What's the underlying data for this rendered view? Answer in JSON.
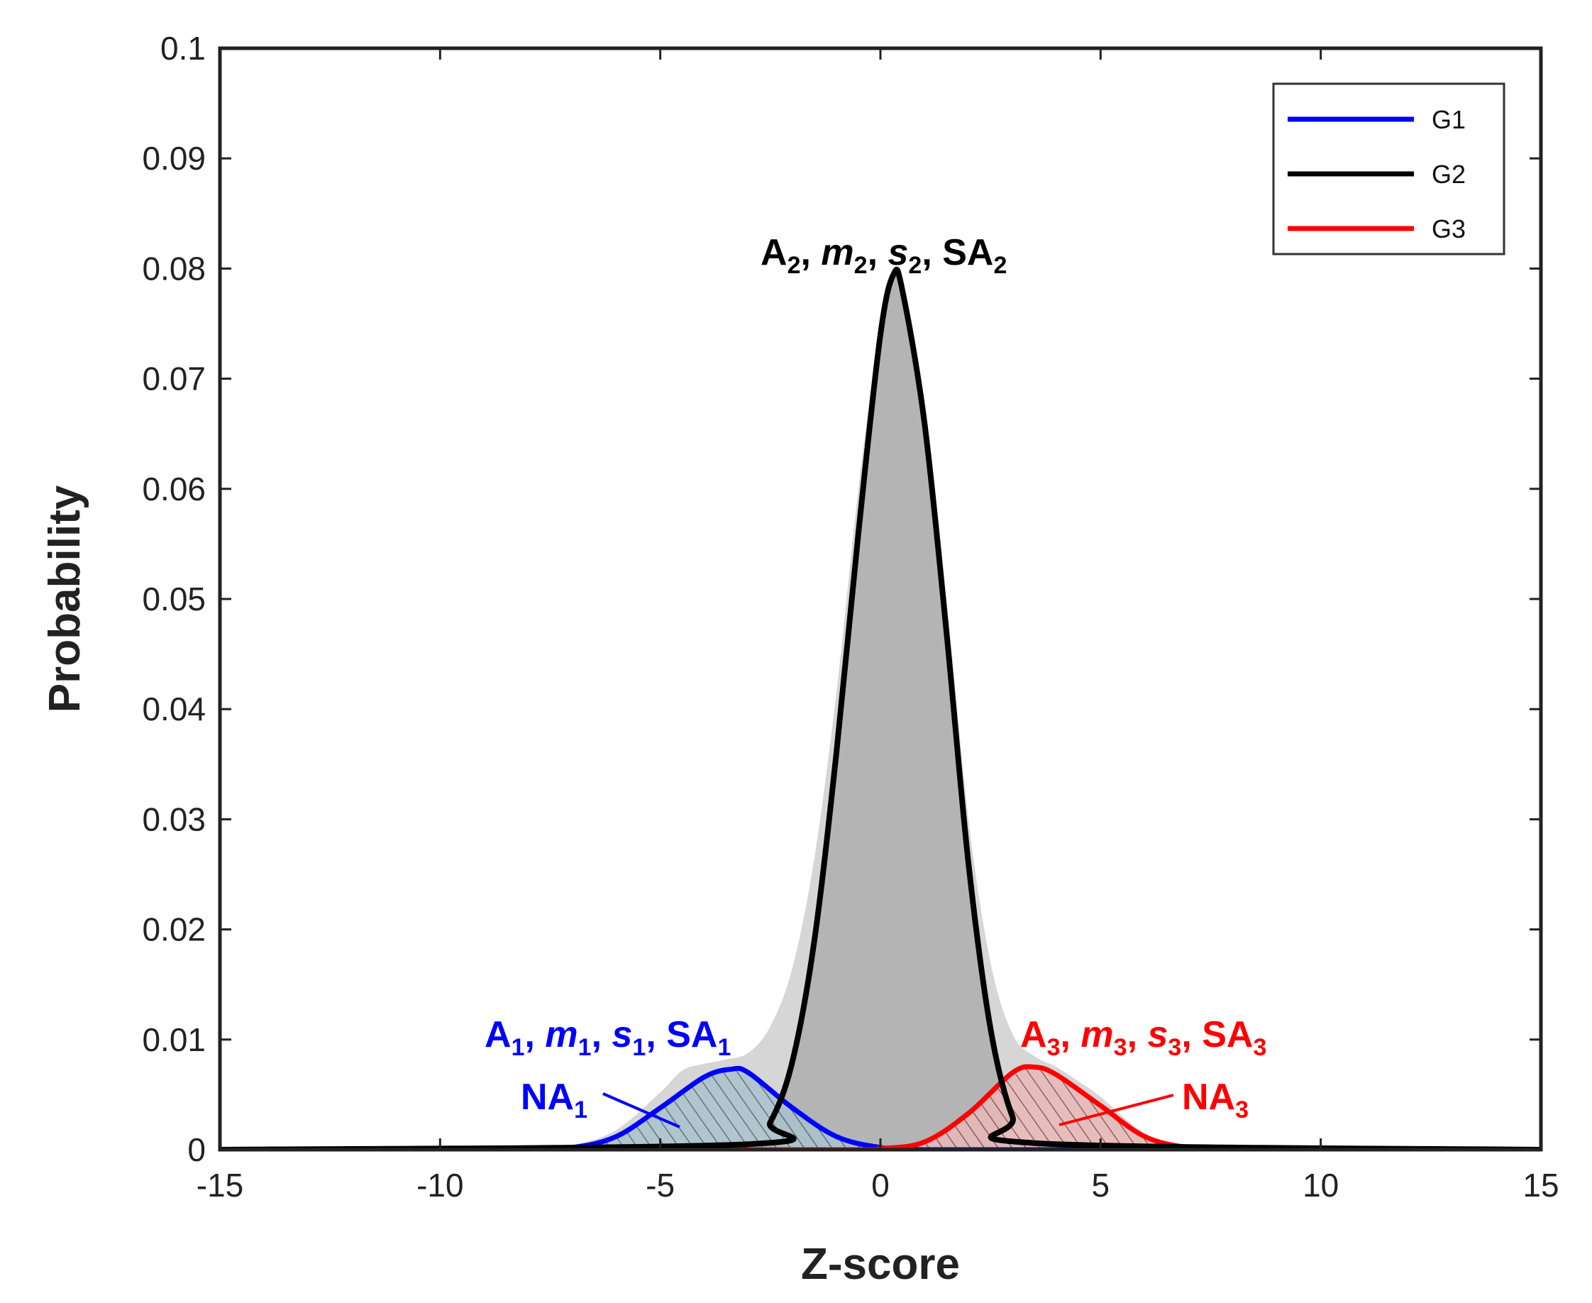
{
  "chart_data": {
    "type": "area",
    "title": "",
    "xlabel": "Z-score",
    "ylabel": "Probability",
    "xlim": [
      -15,
      15
    ],
    "ylim": [
      0,
      0.1
    ],
    "xticks": [
      -15,
      -10,
      -5,
      0,
      5,
      10,
      15
    ],
    "xtick_labels": [
      "-15",
      "-10",
      "-5",
      "0",
      "5",
      "10",
      "15"
    ],
    "yticks": [
      0,
      0.01,
      0.02,
      0.03,
      0.04,
      0.05,
      0.06,
      0.07,
      0.08,
      0.09,
      0.1
    ],
    "ytick_labels": [
      "0",
      "0.01",
      "0.02",
      "0.03",
      "0.04",
      "0.05",
      "0.06",
      "0.07",
      "0.08",
      "0.09",
      "0.1"
    ],
    "legend_position": "top-right",
    "series": [
      {
        "name": "G1",
        "color": "#0000ff",
        "x": [
          -8.2,
          -7,
          -6,
          -5,
          -4,
          -3.4,
          -3,
          -2,
          -1,
          0,
          1,
          2,
          3,
          4,
          5,
          6,
          7,
          8,
          8.2
        ],
        "values": [
          0,
          0.0002,
          0.0012,
          0.0038,
          0.0066,
          0.0073,
          0.007,
          0.0038,
          0.0012,
          0.0002,
          0,
          0,
          0,
          0,
          0,
          0,
          0,
          0,
          0
        ]
      },
      {
        "name": "G2",
        "color": "#000000",
        "x": [
          -15,
          -3,
          -2.5,
          -2,
          -1.5,
          -1,
          -0.5,
          0,
          0.3,
          0.5,
          1,
          1.5,
          2,
          2.5,
          3,
          3.5,
          15
        ],
        "values": [
          0,
          0.0005,
          0.0025,
          0.008,
          0.019,
          0.036,
          0.056,
          0.074,
          0.0795,
          0.078,
          0.066,
          0.047,
          0.026,
          0.011,
          0.003,
          0.0006,
          0
        ]
      },
      {
        "name": "G3",
        "color": "#ff0000",
        "x": [
          -15,
          -1,
          0,
          1,
          2,
          3,
          3.5,
          4,
          5,
          6,
          7,
          8.2,
          15
        ],
        "values": [
          0,
          0,
          0.0001,
          0.0007,
          0.0033,
          0.007,
          0.0075,
          0.0068,
          0.004,
          0.0012,
          0.0002,
          0,
          0
        ]
      }
    ],
    "observed_distribution": {
      "x": [
        -15,
        -8,
        -7,
        -6,
        -5,
        -4.5,
        -4,
        -3.5,
        -3,
        -2.5,
        -2,
        -1.5,
        -1,
        -0.5,
        0,
        0.3,
        0.5,
        1,
        1.5,
        2,
        2.5,
        3,
        3.5,
        4,
        4.5,
        5,
        6,
        7,
        8,
        15
      ],
      "values": [
        0,
        0,
        0.0004,
        0.0018,
        0.0052,
        0.0072,
        0.0078,
        0.0082,
        0.0088,
        0.0112,
        0.0165,
        0.0265,
        0.0415,
        0.06,
        0.075,
        0.0795,
        0.078,
        0.068,
        0.05,
        0.03,
        0.017,
        0.0105,
        0.0085,
        0.0075,
        0.0062,
        0.0048,
        0.0015,
        0.0003,
        0,
        0
      ]
    },
    "annotations": [
      {
        "id": "g2",
        "color": "#000000",
        "parts": [
          [
            "A",
            ""
          ],
          [
            "2",
            "sub"
          ],
          [
            ", ",
            ""
          ],
          [
            "m",
            "it"
          ],
          [
            "2",
            "sub"
          ],
          [
            ", ",
            ""
          ],
          [
            "s",
            "it"
          ],
          [
            "2",
            "sub"
          ],
          [
            ", SA",
            ""
          ],
          [
            "2",
            "sub"
          ]
        ]
      },
      {
        "id": "g1",
        "color": "#0000ff",
        "parts": [
          [
            "A",
            ""
          ],
          [
            "1",
            "sub"
          ],
          [
            ", ",
            ""
          ],
          [
            "m",
            "it"
          ],
          [
            "1",
            "sub"
          ],
          [
            ", ",
            ""
          ],
          [
            "s",
            "it"
          ],
          [
            "1",
            "sub"
          ],
          [
            ", SA",
            ""
          ],
          [
            "1",
            "sub"
          ]
        ]
      },
      {
        "id": "g3",
        "color": "#ff0000",
        "parts": [
          [
            "A",
            ""
          ],
          [
            "3",
            "sub"
          ],
          [
            ", ",
            ""
          ],
          [
            "m",
            "it"
          ],
          [
            "3",
            "sub"
          ],
          [
            ", ",
            ""
          ],
          [
            "s",
            "it"
          ],
          [
            "3",
            "sub"
          ],
          [
            ", SA",
            ""
          ],
          [
            "3",
            "sub"
          ]
        ]
      },
      {
        "id": "na1",
        "color": "#0000ff",
        "parts": [
          [
            "NA",
            ""
          ],
          [
            "1",
            "sub"
          ]
        ]
      },
      {
        "id": "na3",
        "color": "#ff0000",
        "parts": [
          [
            "NA",
            ""
          ],
          [
            "3",
            "sub"
          ]
        ]
      }
    ]
  }
}
